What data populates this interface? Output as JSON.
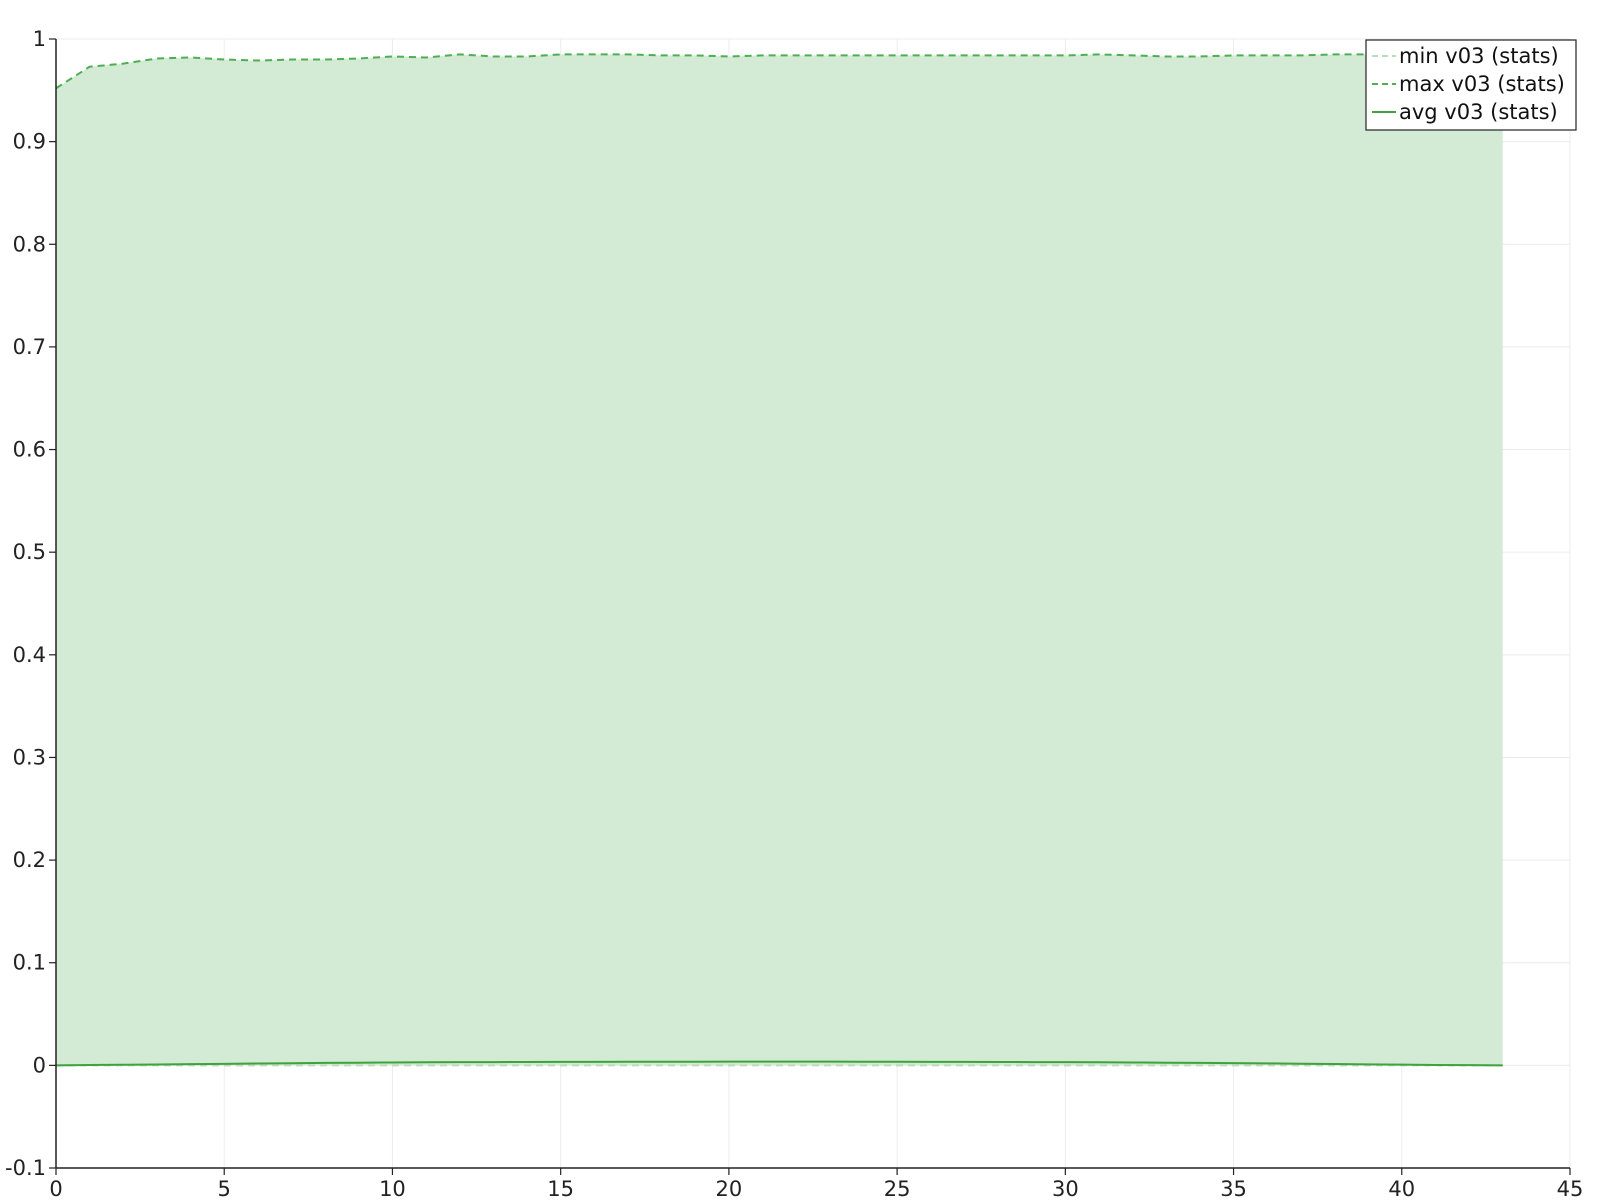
{
  "chart_data": {
    "type": "line",
    "title": "",
    "xlabel": "",
    "ylabel": "",
    "xlim": [
      0,
      45
    ],
    "ylim": [
      -0.1,
      1
    ],
    "x_ticks": [
      0,
      5,
      10,
      15,
      20,
      25,
      30,
      35,
      40,
      45
    ],
    "x_tick_labels": [
      "0",
      "5",
      "10",
      "15",
      "20",
      "25",
      "30",
      "35",
      "40",
      "45"
    ],
    "y_ticks": [
      -0.1,
      0,
      0.1,
      0.2,
      0.3,
      0.4,
      0.5,
      0.6,
      0.7,
      0.8,
      0.9,
      1
    ],
    "y_tick_labels": [
      "-0.1",
      "0",
      "0.1",
      "0.2",
      "0.3",
      "0.4",
      "0.5",
      "0.6",
      "0.7",
      "0.8",
      "0.9",
      "1"
    ],
    "grid": true,
    "legend_position": "top-right",
    "band": {
      "lower_series": "min v03 (stats)",
      "upper_series": "max v03 (stats)",
      "color": "#d3ead5"
    },
    "x": [
      0,
      1,
      2,
      3,
      4,
      5,
      6,
      7,
      8,
      9,
      10,
      11,
      12,
      13,
      14,
      15,
      16,
      17,
      18,
      19,
      20,
      21,
      22,
      23,
      24,
      25,
      26,
      27,
      28,
      29,
      30,
      31,
      32,
      33,
      34,
      35,
      36,
      37,
      38,
      39,
      40,
      41,
      42,
      43
    ],
    "series": [
      {
        "name": "min v03 (stats)",
        "style": "dashed",
        "color": "#b9deb9",
        "values": [
          0,
          0,
          0,
          0,
          0,
          0,
          0,
          0,
          0,
          0,
          0,
          0,
          0,
          0,
          0,
          0,
          0,
          0,
          0,
          0,
          0,
          0,
          0,
          0,
          0,
          0,
          0,
          0,
          0,
          0,
          0,
          0,
          0,
          0,
          0,
          0,
          0,
          0,
          0,
          0,
          0,
          0,
          0,
          0
        ]
      },
      {
        "name": "max v03 (stats)",
        "style": "dashed",
        "color": "#4caf50",
        "values": [
          0.952,
          0.973,
          0.976,
          0.981,
          0.982,
          0.98,
          0.979,
          0.98,
          0.98,
          0.981,
          0.983,
          0.982,
          0.985,
          0.983,
          0.983,
          0.985,
          0.985,
          0.985,
          0.984,
          0.984,
          0.983,
          0.984,
          0.984,
          0.984,
          0.984,
          0.984,
          0.984,
          0.984,
          0.984,
          0.984,
          0.984,
          0.985,
          0.984,
          0.983,
          0.983,
          0.984,
          0.984,
          0.984,
          0.985,
          0.985,
          0.984,
          0.985,
          0.985,
          0.985
        ]
      },
      {
        "name": "avg v03 (stats)",
        "style": "solid",
        "color": "#3ea33e",
        "values": [
          0.0,
          0.0003,
          0.0006,
          0.0009,
          0.0012,
          0.0015,
          0.0018,
          0.0021,
          0.0024,
          0.0026,
          0.0028,
          0.003,
          0.0031,
          0.0032,
          0.0033,
          0.0034,
          0.0034,
          0.0035,
          0.0035,
          0.0035,
          0.0036,
          0.0036,
          0.0036,
          0.0036,
          0.0035,
          0.0035,
          0.0034,
          0.0034,
          0.0033,
          0.0032,
          0.0031,
          0.003,
          0.0028,
          0.0026,
          0.0024,
          0.0022,
          0.0019,
          0.0016,
          0.0013,
          0.001,
          0.0007,
          0.0004,
          0.0002,
          0.0
        ]
      }
    ]
  }
}
